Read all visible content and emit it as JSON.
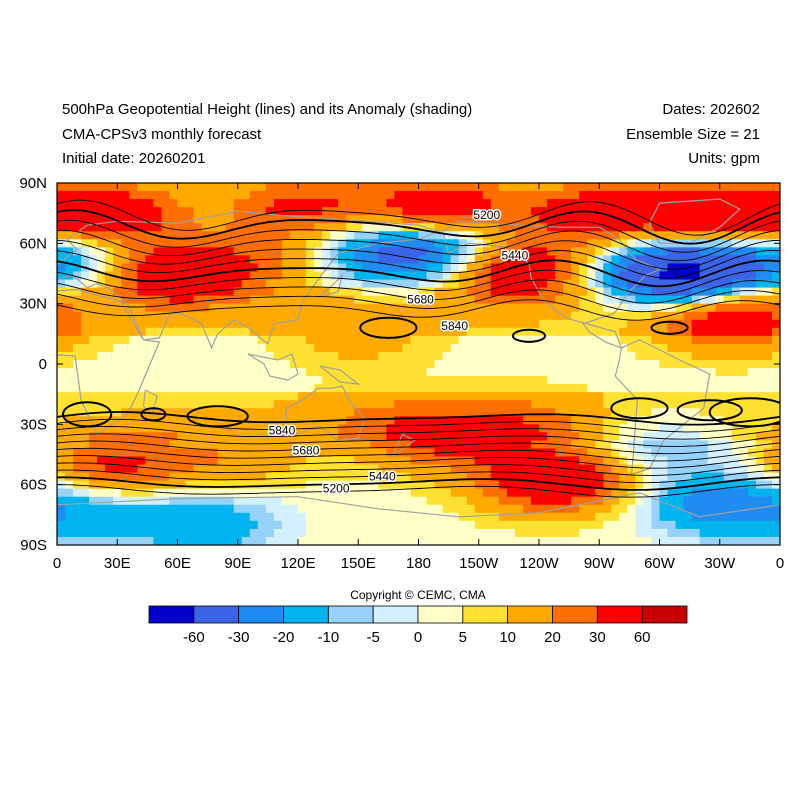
{
  "header": {
    "title": "500hPa Geopotential Height (lines) and its Anomaly (shading)",
    "model": "CMA-CPSv3 monthly forecast",
    "initial_date": "Initial date: 20260201",
    "dates": "Dates: 202602",
    "ensemble": "Ensemble Size = 21",
    "units": "Units: gpm"
  },
  "copyright": "Copyright © CEMC, CMA",
  "colors": {
    "neg": [
      "#0000c8",
      "#3c64e6",
      "#1e8cf0",
      "#00b4f0",
      "#96d2fa",
      "#d2f0ff"
    ],
    "pos": [
      "#ffffc8",
      "#ffe132",
      "#ffaa00",
      "#ff6e00",
      "#ff0000",
      "#c80000"
    ],
    "contour": "#000000",
    "coast": "#a0a0a0"
  },
  "chart_data": {
    "type": "heatmap",
    "title": "500hPa Geopotential Height (lines) and its Anomaly (shading)",
    "x_ticks": [
      "0",
      "30E",
      "60E",
      "90E",
      "120E",
      "150E",
      "180",
      "150W",
      "120W",
      "90W",
      "60W",
      "30W",
      "0"
    ],
    "y_ticks": [
      "90N",
      "60N",
      "30N",
      "0",
      "30S",
      "60S",
      "90S"
    ],
    "xlim": [
      0,
      360
    ],
    "ylim": [
      -90,
      90
    ],
    "colorbar_labels": [
      "-60",
      "-30",
      "-20",
      "-10",
      "-5",
      "0",
      "5",
      "10",
      "20",
      "30",
      "60"
    ],
    "contour_labels": [
      {
        "text": "5200",
        "lon": 214,
        "lat": 74
      },
      {
        "text": "5440",
        "lon": 228,
        "lat": 54
      },
      {
        "text": "5680",
        "lon": 181,
        "lat": 32
      },
      {
        "text": "5840",
        "lon": 198,
        "lat": 19
      },
      {
        "text": "5840",
        "lon": 112,
        "lat": -33
      },
      {
        "text": "5680",
        "lon": 124,
        "lat": -43
      },
      {
        "text": "5440",
        "lon": 162,
        "lat": -56
      },
      {
        "text": "5200",
        "lon": 139,
        "lat": -62
      }
    ],
    "anomaly_features": [
      {
        "lon": 25,
        "lat": 74,
        "value": 45
      },
      {
        "lon": 120,
        "lat": 78,
        "value": 30
      },
      {
        "lon": 190,
        "lat": 78,
        "value": 40
      },
      {
        "lon": 265,
        "lat": 75,
        "value": 35
      },
      {
        "lon": 325,
        "lat": 75,
        "value": 45
      },
      {
        "lon": 60,
        "lat": 45,
        "value": 45
      },
      {
        "lon": 5,
        "lat": 54,
        "value": -25
      },
      {
        "lon": 150,
        "lat": 55,
        "value": -25
      },
      {
        "lon": 192,
        "lat": 55,
        "value": -40
      },
      {
        "lon": 310,
        "lat": 45,
        "value": -70
      },
      {
        "lon": 225,
        "lat": 47,
        "value": 50
      },
      {
        "lon": 335,
        "lat": 22,
        "value": 35
      },
      {
        "lon": 150,
        "lat": 15,
        "value": 12
      },
      {
        "lon": 115,
        "lat": 52,
        "value": 20
      },
      {
        "lon": 30,
        "lat": -50,
        "value": 30
      },
      {
        "lon": 248,
        "lat": -58,
        "value": 45
      },
      {
        "lon": 20,
        "lat": -75,
        "value": -15
      },
      {
        "lon": 75,
        "lat": -80,
        "value": -20
      },
      {
        "lon": 330,
        "lat": -70,
        "value": -30
      },
      {
        "lon": 160,
        "lat": -30,
        "value": 12
      },
      {
        "lon": 235,
        "lat": -30,
        "value": 15
      },
      {
        "lon": 90,
        "lat": -45,
        "value": 14
      },
      {
        "lon": 195,
        "lat": -38,
        "value": 25
      },
      {
        "lon": 300,
        "lat": -40,
        "value": -12
      }
    ]
  }
}
